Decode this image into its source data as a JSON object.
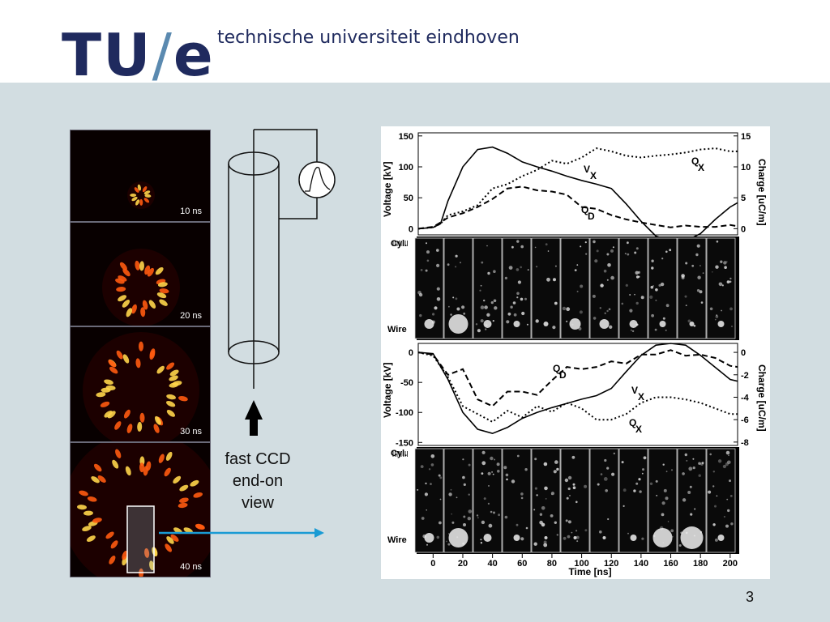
{
  "header": {
    "logo": {
      "part1": "TU",
      "slash": "/",
      "part2": "e"
    },
    "university": "technische universiteit eindhoven"
  },
  "frames": [
    {
      "label": "10 ns"
    },
    {
      "label": "20 ns"
    },
    {
      "label": "30 ns"
    },
    {
      "label": "40 ns"
    }
  ],
  "schematic": {
    "caption": [
      "fast CCD",
      "end-on",
      "view"
    ]
  },
  "page_number": "3",
  "colors": {
    "logo_dark": "#1f2a5e",
    "logo_slash": "#5b8ab0",
    "background": "#d2dde1",
    "arrow": "#1a9bd4"
  },
  "chart_data": [
    {
      "type": "line",
      "ylabel": "Voltage [kV]",
      "y2label": "Charge [uC/m]",
      "yticks": [
        "150",
        "100",
        "50",
        "0"
      ],
      "y2ticks": [
        "15",
        "10",
        "5",
        "0"
      ],
      "ylim": [
        -10,
        155
      ],
      "y2lim": [
        -1,
        15.5
      ],
      "xlim": [
        -10,
        205
      ],
      "series": [
        {
          "name": "VX",
          "label_main": "V",
          "label_sub": "X",
          "style": "solid",
          "axis": "left",
          "x": [
            -10,
            0,
            5,
            10,
            20,
            30,
            40,
            50,
            60,
            70,
            80,
            90,
            100,
            110,
            120,
            130,
            140,
            150,
            160,
            170,
            180,
            190,
            200,
            205
          ],
          "y": [
            0,
            2,
            8,
            45,
            100,
            128,
            132,
            122,
            108,
            100,
            93,
            85,
            78,
            72,
            65,
            40,
            12,
            -12,
            -20,
            -20,
            -8,
            15,
            35,
            42
          ]
        },
        {
          "name": "QX",
          "label_main": "Q",
          "label_sub": "X",
          "style": "dotted",
          "axis": "right",
          "x": [
            -10,
            0,
            5,
            10,
            20,
            30,
            40,
            50,
            60,
            70,
            80,
            90,
            100,
            110,
            120,
            130,
            140,
            150,
            160,
            170,
            180,
            190,
            200,
            205
          ],
          "y": [
            0,
            0.2,
            0.8,
            2.2,
            2.8,
            3.8,
            6.5,
            7.2,
            8.5,
            9.5,
            11.0,
            10.5,
            11.5,
            13.0,
            12.5,
            11.8,
            11.5,
            11.8,
            12.0,
            12.3,
            12.8,
            13.0,
            12.5,
            12.5
          ]
        },
        {
          "name": "QD",
          "label_main": "Q",
          "label_sub": "D",
          "style": "dashed",
          "axis": "right",
          "x": [
            -10,
            0,
            5,
            10,
            20,
            30,
            40,
            50,
            60,
            70,
            80,
            90,
            100,
            110,
            120,
            130,
            140,
            150,
            160,
            170,
            180,
            190,
            200,
            205
          ],
          "y": [
            0,
            0.3,
            1.0,
            1.8,
            2.5,
            3.5,
            4.8,
            6.5,
            6.8,
            6.2,
            6.0,
            5.5,
            3.5,
            3.2,
            2.2,
            1.5,
            1.0,
            0.6,
            0.2,
            0.5,
            0.3,
            0.3,
            0.6,
            0.4
          ]
        }
      ]
    },
    {
      "type": "line",
      "ylabel": "Voltage [kV]",
      "y2label": "Charge [uC/m]",
      "yticks": [
        "0",
        "-50",
        "-100",
        "-150"
      ],
      "y2ticks": [
        "0",
        "-2",
        "-4",
        "-6",
        "-8"
      ],
      "ylim": [
        -155,
        15
      ],
      "y2lim": [
        -8.3,
        0.8
      ],
      "xlim": [
        -10,
        205
      ],
      "series": [
        {
          "name": "VX",
          "label_main": "V",
          "label_sub": "X",
          "style": "solid",
          "axis": "left",
          "x": [
            -10,
            0,
            10,
            20,
            30,
            40,
            50,
            60,
            70,
            80,
            90,
            100,
            110,
            120,
            130,
            140,
            150,
            160,
            170,
            180,
            190,
            200,
            205
          ],
          "y": [
            0,
            -2,
            -45,
            -100,
            -128,
            -135,
            -125,
            -110,
            -100,
            -92,
            -85,
            -78,
            -72,
            -60,
            -32,
            -5,
            12,
            15,
            12,
            -5,
            -25,
            -45,
            -48
          ]
        },
        {
          "name": "QX",
          "label_main": "Q",
          "label_sub": "X",
          "style": "dotted",
          "axis": "right",
          "x": [
            -10,
            0,
            10,
            20,
            30,
            40,
            50,
            60,
            70,
            80,
            90,
            100,
            110,
            120,
            130,
            140,
            150,
            160,
            170,
            180,
            190,
            200,
            205
          ],
          "y": [
            0,
            -0.3,
            -2.2,
            -4.8,
            -5.5,
            -6.2,
            -5.2,
            -5.8,
            -4.8,
            -5.3,
            -4.5,
            -5.0,
            -6.0,
            -6.0,
            -5.5,
            -4.5,
            -4.0,
            -4.0,
            -4.2,
            -4.5,
            -5.0,
            -5.5,
            -5.5
          ]
        },
        {
          "name": "QD",
          "label_main": "Q",
          "label_sub": "D",
          "style": "dashed",
          "axis": "right",
          "x": [
            -10,
            0,
            10,
            20,
            30,
            40,
            50,
            60,
            70,
            80,
            90,
            100,
            110,
            120,
            130,
            140,
            150,
            160,
            170,
            180,
            190,
            200,
            205
          ],
          "y": [
            0,
            -0.2,
            -2.0,
            -1.5,
            -4.2,
            -4.8,
            -3.5,
            -3.5,
            -3.8,
            -2.5,
            -1.3,
            -1.5,
            -1.3,
            -0.8,
            -1.0,
            -0.2,
            -0.2,
            0.2,
            -0.3,
            -0.2,
            -0.5,
            -1.2,
            -1.3
          ]
        }
      ]
    }
  ],
  "strips": {
    "top_label": "Cyl.",
    "bottom_label": "Wire"
  },
  "xaxis": {
    "ticks": [
      "0",
      "20",
      "40",
      "60",
      "80",
      "100",
      "120",
      "140",
      "160",
      "180",
      "200"
    ],
    "label": "Time [ns]"
  }
}
